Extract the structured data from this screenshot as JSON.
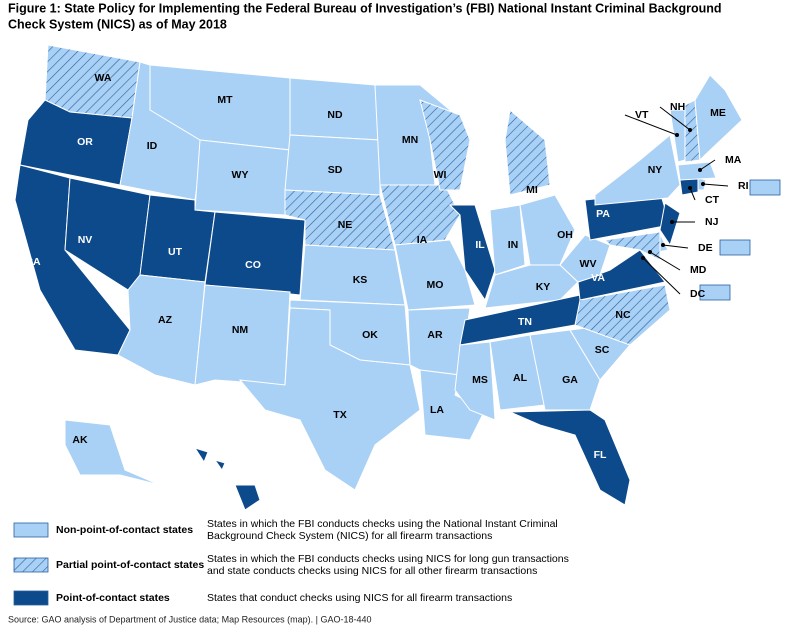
{
  "title": [
    "Figure 1: State Policy for Implementing the Federal Bureau of Investigation’s (FBI) National Instant Criminal Background",
    "Check System (NICS) as of May 2018"
  ],
  "states": [
    {
      "label": "WA",
      "category": 1
    },
    {
      "label": "OR",
      "category": 2
    },
    {
      "label": "CA",
      "category": 2
    },
    {
      "label": "NV",
      "category": 2
    },
    {
      "label": "ID",
      "category": 0
    },
    {
      "label": "MT",
      "category": 0
    },
    {
      "label": "WY",
      "category": 0
    },
    {
      "label": "UT",
      "category": 2
    },
    {
      "label": "CO",
      "category": 2
    },
    {
      "label": "AZ",
      "category": 0
    },
    {
      "label": "NM",
      "category": 0
    },
    {
      "label": "ND",
      "category": 0
    },
    {
      "label": "SD",
      "category": 0
    },
    {
      "label": "NE",
      "category": 1
    },
    {
      "label": "KS",
      "category": 0
    },
    {
      "label": "OK",
      "category": 0
    },
    {
      "label": "TX",
      "category": 0
    },
    {
      "label": "MN",
      "category": 0
    },
    {
      "label": "IA",
      "category": 1
    },
    {
      "label": "MO",
      "category": 0
    },
    {
      "label": "AR",
      "category": 0
    },
    {
      "label": "LA",
      "category": 0
    },
    {
      "label": "WI",
      "category": 1
    },
    {
      "label": "IL",
      "category": 2
    },
    {
      "label": "MI",
      "category": 1
    },
    {
      "label": "IN",
      "category": 0
    },
    {
      "label": "OH",
      "category": 0
    },
    {
      "label": "KY",
      "category": 0
    },
    {
      "label": "TN",
      "category": 2
    },
    {
      "label": "MS",
      "category": 0
    },
    {
      "label": "AL",
      "category": 0
    },
    {
      "label": "GA",
      "category": 0
    },
    {
      "label": "FL",
      "category": 2
    },
    {
      "label": "SC",
      "category": 0
    },
    {
      "label": "NC",
      "category": 1
    },
    {
      "label": "VA",
      "category": 2
    },
    {
      "label": "WV",
      "category": 0
    },
    {
      "label": "PA",
      "category": 2
    },
    {
      "label": "NY",
      "category": 0
    },
    {
      "label": "NJ",
      "category": 2
    },
    {
      "label": "DE",
      "category": 0
    },
    {
      "label": "MD",
      "category": 1
    },
    {
      "label": "CT",
      "category": 2
    },
    {
      "label": "RI",
      "category": 0
    },
    {
      "label": "MA",
      "category": 0
    },
    {
      "label": "VT",
      "category": 0
    },
    {
      "label": "NH",
      "category": 1
    },
    {
      "label": "ME",
      "category": 0
    },
    {
      "label": "AK",
      "category": 0
    },
    {
      "label": "HI",
      "category": 2
    },
    {
      "label": "DC",
      "category": 0
    }
  ],
  "legend": [
    {
      "label": "Non-point-of-contact states",
      "description": [
        "States in which the FBI conducts checks using the National Instant Criminal",
        "Background Check System (NICS) for all firearm transactions"
      ]
    },
    {
      "label": "Partial point-of-contact states",
      "description": [
        "States in which the FBI conducts checks using NICS for long gun transactions",
        "and state conducts checks using NICS for all other firearm transactions"
      ]
    },
    {
      "label": "Point-of-contact states",
      "description": [
        "States that conduct checks using NICS for all firearm transactions"
      ]
    }
  ],
  "source": "Source: GAO analysis of Department of Justice data; Map Resources (map).  |  GAO-18-440"
}
